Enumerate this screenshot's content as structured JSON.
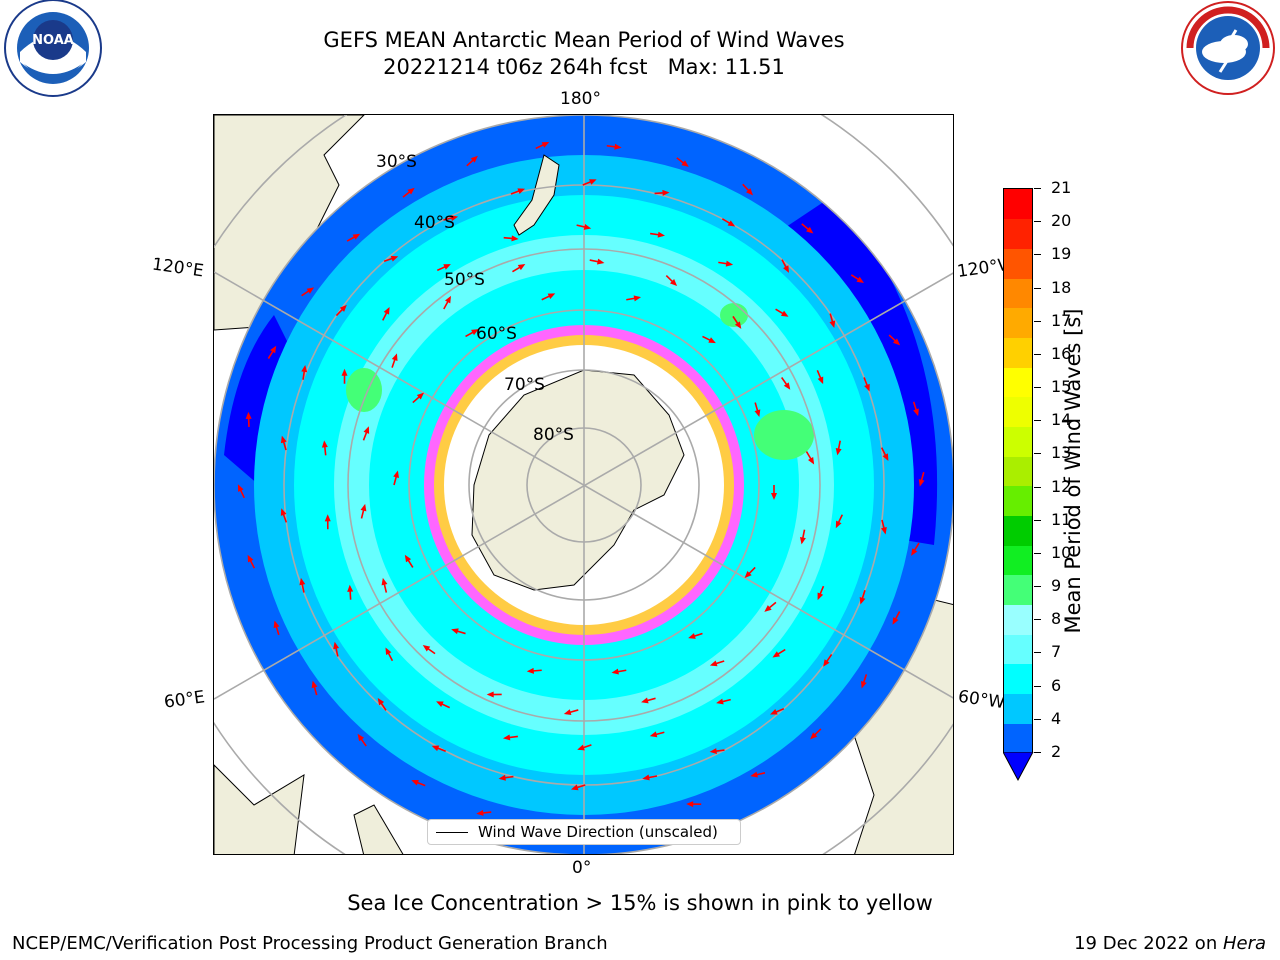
{
  "title": {
    "line1": "GEFS MEAN Antarctic Mean Period of Wind Waves",
    "line2": "20221214 t06z 264h fcst   Max: 11.51"
  },
  "logos": {
    "left": "noaa-logo",
    "right": "national-weather-service-logo"
  },
  "map": {
    "projection": "south-polar-stereographic",
    "longitude_labels": {
      "top": "180°",
      "bottom": "0°",
      "upper_left": "120°E",
      "upper_right": "120°W",
      "lower_left": "60°E",
      "lower_right": "60°W"
    },
    "latitude_labels": [
      "30°S",
      "40°S",
      "50°S",
      "60°S",
      "70°S",
      "80°S"
    ],
    "land_color": "#efeedb",
    "ocean_base_color": "#00ffff",
    "ice_colors": [
      "#ff66ff",
      "#ffff66",
      "#ffffff"
    ],
    "arrow_color": "#ff0000",
    "legend_label": "Wind Wave Direction (unscaled)"
  },
  "colorbar": {
    "label": "Mean Period of Wind Waves [s]",
    "ticks": [
      "2",
      "4",
      "6",
      "7",
      "8",
      "9",
      "10",
      "11",
      "12",
      "13",
      "14",
      "15",
      "16",
      "17",
      "18",
      "19",
      "20",
      "21"
    ],
    "colors": [
      "#0064ff",
      "#00c8ff",
      "#00ffff",
      "#66ffff",
      "#99ffff",
      "#44ff77",
      "#11ee22",
      "#00cc00",
      "#66ee00",
      "#aaee00",
      "#ccff00",
      "#eeff00",
      "#ffff00",
      "#ffd000",
      "#ffaa00",
      "#ff8800",
      "#ff5500",
      "#ff2200",
      "#ff0000"
    ],
    "extend_color": "#0000ff"
  },
  "subtitle": "Sea Ice Concentration > 15% is shown in pink to yellow",
  "footer": {
    "left": "NCEP/EMC/Verification Post Processing Product Generation Branch",
    "right_date": "19 Dec 2022 on ",
    "right_machine": "Hera"
  }
}
